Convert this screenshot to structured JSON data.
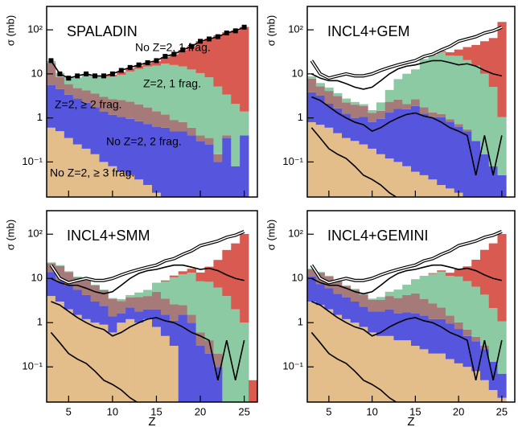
{
  "chart_data": [
    {
      "type": "bar",
      "stacked": true,
      "log_y": true,
      "title": "SPALADIN",
      "ylabel": "σ (mb)",
      "show_xtick_labels": false,
      "x": [
        3,
        4,
        5,
        6,
        7,
        8,
        9,
        10,
        11,
        12,
        13,
        14,
        15,
        16,
        17,
        18,
        19,
        20,
        21,
        22,
        23,
        24,
        25,
        26
      ],
      "xlim": [
        2.5,
        26.5
      ],
      "xticks": [
        5,
        10,
        15,
        20,
        25
      ],
      "ylim": [
        0.016,
        340
      ],
      "yticks": [
        {
          "value": 0.1,
          "label": "10⁻¹"
        },
        1,
        10,
        {
          "value": 100,
          "label": "10²"
        }
      ],
      "annotations": [
        "No Z=2, 1 frag.",
        "Z=2, 1 frag.",
        "Z=2, ≥ 2 frag.",
        "No Z=2, 2 frag.",
        "No Z=2, ≥ 3 frag."
      ],
      "series": [
        {
          "color": "#e3bd8a",
          "values": [
            0.6,
            0.5,
            0.35,
            0.25,
            0.2,
            0.15,
            0.1,
            0.08,
            0.06,
            0.05,
            0.04,
            0.03,
            0.02,
            0,
            0,
            0,
            0,
            0,
            0,
            0,
            0,
            0,
            0,
            0
          ]
        },
        {
          "color": "#5555dd",
          "values": [
            5,
            4,
            3,
            2.5,
            2,
            1.6,
            1.3,
            1.1,
            1,
            0.9,
            0.8,
            0.7,
            0.6,
            0.6,
            0.5,
            0.5,
            0.4,
            0.3,
            0.25,
            0.1,
            0.35,
            0.08,
            0.4,
            0
          ]
        },
        {
          "color": "#a57a78",
          "values": [
            12,
            4,
            2.5,
            2,
            2,
            1.8,
            1.6,
            1.5,
            1.5,
            1.4,
            1.2,
            1,
            0.8,
            0.6,
            0.4,
            0.3,
            0.2,
            0.1,
            0.1,
            0.05,
            0.05,
            0,
            0,
            0
          ]
        },
        {
          "color": "#8ccaa4",
          "values": [
            2,
            2,
            2.5,
            3.5,
            5,
            5,
            5.5,
            6,
            7,
            9,
            11,
            13,
            14,
            16,
            15,
            14,
            12,
            10,
            8,
            5,
            3,
            2,
            1,
            0
          ]
        },
        {
          "color": "#d85a50",
          "values": [
            0,
            0,
            0,
            0,
            0.2,
            0.3,
            0.5,
            0.8,
            1.5,
            2,
            2.5,
            3,
            4,
            7,
            12,
            20,
            30,
            45,
            55,
            70,
            85,
            95,
            115,
            0
          ]
        }
      ],
      "lines": [
        {
          "color": "#000000",
          "marker": "square",
          "values": [
            20,
            10,
            8,
            9,
            10,
            9,
            9,
            10,
            12,
            14,
            16,
            18,
            20,
            25,
            28,
            35,
            42,
            55,
            62,
            70,
            85,
            95,
            115,
            null
          ]
        }
      ]
    },
    {
      "type": "bar",
      "stacked": true,
      "log_y": true,
      "title": "INCL4+GEM",
      "ylabel": "σ (mb)",
      "show_xtick_labels": false,
      "x": [
        3,
        4,
        5,
        6,
        7,
        8,
        9,
        10,
        11,
        12,
        13,
        14,
        15,
        16,
        17,
        18,
        19,
        20,
        21,
        22,
        23,
        24,
        25,
        26
      ],
      "xlim": [
        2.5,
        26.5
      ],
      "xticks": [
        5,
        10,
        15,
        20,
        25
      ],
      "ylim": [
        0.016,
        340
      ],
      "yticks": [
        {
          "value": 0.1,
          "label": "10⁻¹"
        },
        1,
        10,
        {
          "value": 100,
          "label": "10²"
        }
      ],
      "series": [
        {
          "color": "#e3bd8a",
          "values": [
            0.8,
            0.7,
            0.6,
            0.45,
            0.35,
            0.3,
            0.25,
            0.2,
            0.15,
            0.12,
            0.1,
            0.08,
            0.06,
            0.05,
            0.04,
            0.03,
            0.025,
            0.02,
            0,
            0,
            0,
            0,
            0,
            0
          ]
        },
        {
          "color": "#5555dd",
          "values": [
            3,
            2.5,
            1.5,
            1.2,
            0.9,
            0.7,
            0.8,
            0.6,
            0.8,
            1.2,
            1.5,
            1.5,
            1.8,
            1.2,
            1,
            1,
            0.8,
            0.6,
            0.5,
            0.3,
            0.15,
            0.08,
            0.05,
            0
          ]
        },
        {
          "color": "#a57a78",
          "values": [
            4,
            2,
            2,
            1.5,
            1,
            1,
            0.8,
            0.5,
            0.5,
            1,
            1,
            0.5,
            0.8,
            0.5,
            0.3,
            0.2,
            0.1,
            0.1,
            0.05,
            0,
            0,
            0,
            0,
            0
          ]
        },
        {
          "color": "#8ccaa4",
          "values": [
            1,
            1,
            0.8,
            0.5,
            0.5,
            0.3,
            0.2,
            0.2,
            0.8,
            2,
            5,
            8,
            10,
            20,
            25,
            30,
            25,
            25,
            20,
            15,
            10,
            5,
            1,
            0
          ]
        },
        {
          "color": "#d85a50",
          "values": [
            0,
            0,
            0,
            0,
            0,
            0,
            0,
            0,
            0,
            0,
            0,
            0,
            0,
            0,
            0.5,
            2,
            5,
            10,
            20,
            30,
            45,
            60,
            150,
            0
          ]
        }
      ],
      "lines": [
        {
          "color": "#000000",
          "style": "double",
          "values": [
            20,
            10,
            8,
            9,
            10,
            9,
            9,
            10,
            12,
            14,
            16,
            18,
            20,
            25,
            28,
            35,
            42,
            55,
            62,
            70,
            85,
            95,
            115,
            null
          ]
        },
        {
          "color": "#000000",
          "values": [
            10,
            8,
            7,
            7,
            6,
            5,
            4.5,
            5,
            7,
            10,
            13,
            15,
            16,
            18,
            20,
            20,
            18,
            16,
            17,
            15,
            12,
            10,
            9,
            null
          ]
        },
        {
          "color": "#000000",
          "values": [
            3,
            2.5,
            1.8,
            1.3,
            1,
            0.8,
            0.7,
            0.5,
            0.6,
            0.8,
            1,
            1.2,
            1.3,
            1.1,
            1,
            0.8,
            0.6,
            0.5,
            0.4,
            0.05,
            0.4,
            0.05,
            0.4,
            null
          ]
        },
        {
          "color": "#000000",
          "values": [
            0.6,
            0.35,
            0.2,
            0.15,
            0.12,
            0.08,
            0.05,
            0.04,
            0.03,
            0.02,
            0.015,
            null,
            null,
            null,
            null,
            null,
            null,
            null,
            null,
            null,
            null,
            null,
            null,
            null
          ]
        }
      ]
    },
    {
      "type": "bar",
      "stacked": true,
      "log_y": true,
      "title": "INCL4+SMM",
      "ylabel": "σ (mb)",
      "xlabel": "Z",
      "show_xtick_labels": true,
      "x": [
        3,
        4,
        5,
        6,
        7,
        8,
        9,
        10,
        11,
        12,
        13,
        14,
        15,
        16,
        17,
        18,
        19,
        20,
        21,
        22,
        23,
        24,
        25,
        26
      ],
      "xlim": [
        2.5,
        26.5
      ],
      "xticks": [
        5,
        10,
        15,
        20,
        25
      ],
      "ylim": [
        0.016,
        340
      ],
      "yticks": [
        {
          "value": 0.1,
          "label": "10⁻¹"
        },
        1,
        10,
        {
          "value": 100,
          "label": "10²"
        }
      ],
      "series": [
        {
          "color": "#e3bd8a",
          "values": [
            4,
            3,
            2,
            1.5,
            1.2,
            1,
            0.9,
            0.6,
            1,
            1.2,
            1,
            1.2,
            0.8,
            0.5,
            0.3,
            0,
            0,
            0,
            0,
            0,
            0,
            0,
            0,
            0
          ]
        },
        {
          "color": "#5555dd",
          "values": [
            10,
            6,
            5,
            4,
            3,
            2,
            1.5,
            0.8,
            0.6,
            1,
            0.8,
            0.8,
            1.2,
            1,
            0.8,
            1.5,
            1,
            0.3,
            0.2,
            0.1,
            0,
            0,
            0,
            0
          ]
        },
        {
          "color": "#a57a78",
          "values": [
            8,
            10,
            7,
            5,
            5,
            4,
            3,
            2,
            1.5,
            1.5,
            2,
            2,
            3,
            2,
            1.5,
            1,
            0.5,
            0.3,
            0.2,
            0.1,
            0,
            0,
            0,
            0
          ]
        },
        {
          "color": "#8ccaa4",
          "values": [
            1,
            1,
            0.5,
            0.5,
            0.3,
            0.2,
            0.2,
            0.2,
            0.3,
            0.5,
            1,
            1.5,
            3,
            5,
            8,
            10,
            12,
            8,
            8,
            6,
            4,
            2,
            1,
            0
          ]
        },
        {
          "color": "#d85a50",
          "values": [
            0,
            0,
            0,
            0,
            0,
            0,
            0,
            0,
            0,
            0,
            0,
            0,
            0,
            0.5,
            1,
            2,
            3,
            5,
            10,
            20,
            40,
            60,
            100,
            0.05
          ]
        }
      ],
      "lines": [
        {
          "color": "#000000",
          "style": "double",
          "values": [
            20,
            10,
            8,
            9,
            10,
            9,
            9,
            10,
            12,
            14,
            16,
            18,
            20,
            25,
            28,
            35,
            42,
            55,
            62,
            70,
            85,
            95,
            115,
            null
          ]
        },
        {
          "color": "#000000",
          "values": [
            10,
            8,
            7,
            7,
            6,
            5,
            4.5,
            5,
            7,
            10,
            13,
            15,
            16,
            18,
            20,
            20,
            18,
            16,
            17,
            15,
            12,
            10,
            9,
            null
          ]
        },
        {
          "color": "#000000",
          "values": [
            3,
            2.5,
            1.8,
            1.3,
            1,
            0.8,
            0.7,
            0.5,
            0.6,
            0.8,
            1,
            1.2,
            1.3,
            1.1,
            1,
            0.8,
            0.6,
            0.5,
            0.4,
            0.05,
            0.4,
            0.05,
            0.4,
            null
          ]
        },
        {
          "color": "#000000",
          "values": [
            0.6,
            0.35,
            0.2,
            0.15,
            0.12,
            0.08,
            0.05,
            0.04,
            0.03,
            0.02,
            0.015,
            null,
            null,
            null,
            null,
            null,
            null,
            null,
            null,
            null,
            null,
            null,
            null,
            null
          ]
        }
      ]
    },
    {
      "type": "bar",
      "stacked": true,
      "log_y": true,
      "title": "INCL4+GEMINI",
      "ylabel": "σ (mb)",
      "xlabel": "Z",
      "show_xtick_labels": true,
      "x": [
        3,
        4,
        5,
        6,
        7,
        8,
        9,
        10,
        11,
        12,
        13,
        14,
        15,
        16,
        17,
        18,
        19,
        20,
        21,
        22,
        23,
        24,
        25,
        26
      ],
      "xlim": [
        2.5,
        26.5
      ],
      "xticks": [
        5,
        10,
        15,
        20,
        25
      ],
      "ylim": [
        0.016,
        340
      ],
      "yticks": [
        {
          "value": 0.1,
          "label": "10⁻¹"
        },
        1,
        10,
        {
          "value": 100,
          "label": "10²"
        }
      ],
      "series": [
        {
          "color": "#e3bd8a",
          "values": [
            3,
            2.5,
            2,
            1.5,
            1.2,
            1,
            0.8,
            0.6,
            0.5,
            0.5,
            0.4,
            0.4,
            0.3,
            0.25,
            0.2,
            0.2,
            0.15,
            0.12,
            0.1,
            0.08,
            0.05,
            0.03,
            0.02,
            0
          ]
        },
        {
          "color": "#5555dd",
          "values": [
            8,
            5,
            4,
            3,
            2.5,
            2,
            1.5,
            1.2,
            1.3,
            1.5,
            1.2,
            1.3,
            1.3,
            1.2,
            1,
            1,
            0.8,
            0.6,
            0.4,
            0.3,
            0.2,
            0.1,
            0.05,
            0
          ]
        },
        {
          "color": "#a57a78",
          "values": [
            5,
            6,
            5,
            4,
            3,
            2.5,
            2,
            1.5,
            1.5,
            2,
            2,
            2.5,
            3,
            2,
            1.5,
            1,
            0.5,
            0.3,
            0.2,
            0.1,
            0.05,
            0,
            0,
            0
          ]
        },
        {
          "color": "#8ccaa4",
          "values": [
            0.5,
            0.5,
            0.5,
            0.3,
            0.3,
            0.3,
            0.3,
            0.2,
            0.5,
            1,
            2,
            3,
            5,
            8,
            10,
            12,
            10,
            10,
            8,
            6,
            4,
            2,
            1,
            0
          ]
        },
        {
          "color": "#d85a50",
          "values": [
            0,
            0,
            0,
            0,
            0,
            0,
            0,
            0,
            0,
            0,
            0,
            0,
            0,
            0,
            0.5,
            1,
            2,
            5,
            10,
            20,
            40,
            60,
            100,
            0
          ]
        }
      ],
      "lines": [
        {
          "color": "#000000",
          "style": "double",
          "values": [
            20,
            10,
            8,
            9,
            10,
            9,
            9,
            10,
            12,
            14,
            16,
            18,
            20,
            25,
            28,
            35,
            42,
            55,
            62,
            70,
            85,
            95,
            115,
            null
          ]
        },
        {
          "color": "#000000",
          "values": [
            10,
            8,
            7,
            7,
            6,
            5,
            4.5,
            5,
            7,
            10,
            13,
            15,
            16,
            18,
            20,
            20,
            18,
            16,
            17,
            15,
            12,
            10,
            9,
            null
          ]
        },
        {
          "color": "#000000",
          "values": [
            3,
            2.5,
            1.8,
            1.3,
            1,
            0.8,
            0.7,
            0.5,
            0.6,
            0.8,
            1,
            1.2,
            1.3,
            1.1,
            1,
            0.8,
            0.6,
            0.5,
            0.4,
            0.05,
            0.4,
            0.05,
            0.4,
            null
          ]
        },
        {
          "color": "#000000",
          "values": [
            0.6,
            0.35,
            0.2,
            0.15,
            0.12,
            0.08,
            0.05,
            0.04,
            0.03,
            0.02,
            0.015,
            null,
            null,
            null,
            null,
            null,
            null,
            null,
            null,
            null,
            null,
            null,
            null,
            null
          ]
        }
      ]
    }
  ]
}
